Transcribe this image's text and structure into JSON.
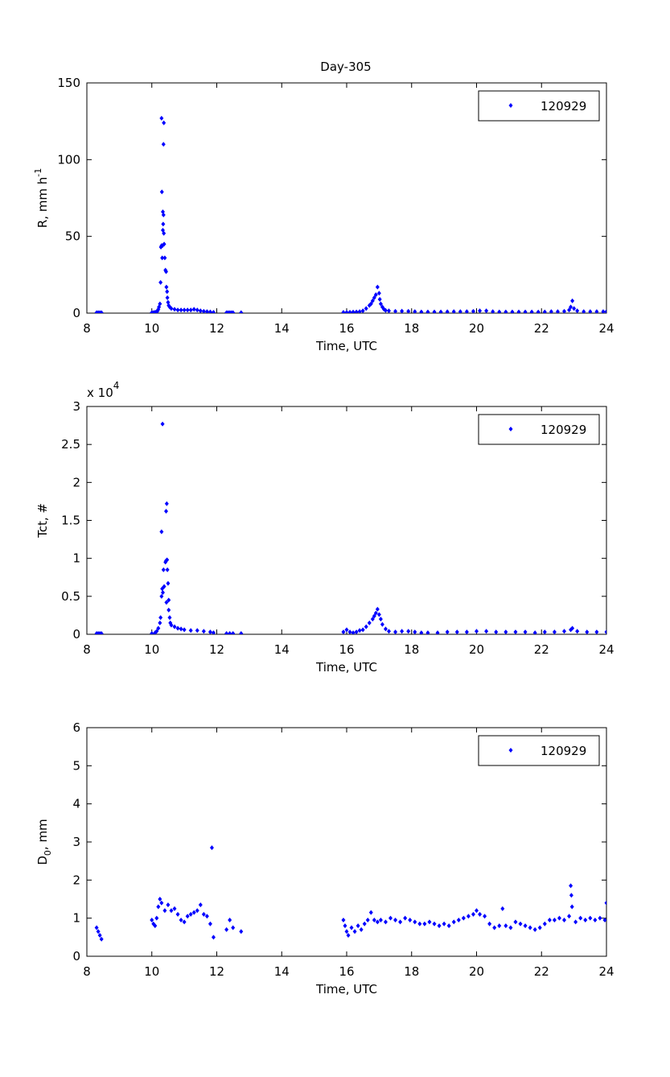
{
  "chart_data": [
    {
      "type": "scatter",
      "title": "Day-305",
      "xlabel": "Time, UTC",
      "ylabel": "R, mm h",
      "ylabel_sup": "-1",
      "xlim": [
        8,
        24
      ],
      "ylim": [
        0,
        150
      ],
      "xticks": [
        "8",
        "10",
        "12",
        "14",
        "16",
        "18",
        "20",
        "22",
        "24"
      ],
      "yticks": [
        "0",
        "50",
        "100",
        "150"
      ],
      "legend": {
        "label": "120929",
        "position": "top-right"
      },
      "color": "#0000ff",
      "points": [
        [
          8.3,
          0.3
        ],
        [
          8.35,
          0.3
        ],
        [
          8.4,
          0.3
        ],
        [
          8.45,
          0.3
        ],
        [
          10.0,
          0.3
        ],
        [
          10.05,
          0.4
        ],
        [
          10.1,
          0.6
        ],
        [
          10.15,
          1
        ],
        [
          10.18,
          1.5
        ],
        [
          10.2,
          2.5
        ],
        [
          10.22,
          4
        ],
        [
          10.25,
          6
        ],
        [
          10.27,
          20
        ],
        [
          10.28,
          43
        ],
        [
          10.3,
          44
        ],
        [
          10.31,
          79
        ],
        [
          10.3,
          127
        ],
        [
          10.37,
          124
        ],
        [
          10.36,
          110
        ],
        [
          10.34,
          66
        ],
        [
          10.36,
          64
        ],
        [
          10.35,
          58
        ],
        [
          10.34,
          54
        ],
        [
          10.37,
          52
        ],
        [
          10.38,
          45
        ],
        [
          10.33,
          44
        ],
        [
          10.32,
          36
        ],
        [
          10.4,
          36
        ],
        [
          10.42,
          28
        ],
        [
          10.44,
          27
        ],
        [
          10.45,
          17
        ],
        [
          10.47,
          14
        ],
        [
          10.48,
          10
        ],
        [
          10.5,
          7
        ],
        [
          10.52,
          5
        ],
        [
          10.55,
          4
        ],
        [
          10.6,
          3
        ],
        [
          10.7,
          2.5
        ],
        [
          10.8,
          2
        ],
        [
          10.9,
          2
        ],
        [
          11.0,
          2
        ],
        [
          11.1,
          2
        ],
        [
          11.2,
          2
        ],
        [
          11.3,
          2.5
        ],
        [
          11.4,
          2
        ],
        [
          11.5,
          1.5
        ],
        [
          11.6,
          1.2
        ],
        [
          11.7,
          1
        ],
        [
          11.8,
          0.8
        ],
        [
          11.9,
          0.5
        ],
        [
          12.3,
          0.3
        ],
        [
          12.35,
          0.3
        ],
        [
          12.4,
          0.3
        ],
        [
          12.45,
          0.3
        ],
        [
          12.5,
          0.3
        ],
        [
          12.75,
          0.3
        ],
        [
          15.9,
          0.5
        ],
        [
          16.0,
          0.5
        ],
        [
          16.1,
          0.6
        ],
        [
          16.2,
          0.7
        ],
        [
          16.3,
          0.8
        ],
        [
          16.4,
          1
        ],
        [
          16.5,
          1.5
        ],
        [
          16.6,
          3
        ],
        [
          16.7,
          5
        ],
        [
          16.75,
          6
        ],
        [
          16.8,
          8
        ],
        [
          16.85,
          10
        ],
        [
          16.9,
          12
        ],
        [
          16.95,
          17
        ],
        [
          17.0,
          13
        ],
        [
          17.02,
          9
        ],
        [
          17.05,
          6
        ],
        [
          17.1,
          4
        ],
        [
          17.15,
          2.5
        ],
        [
          17.2,
          1.8
        ],
        [
          17.3,
          1.5
        ],
        [
          17.5,
          1.2
        ],
        [
          17.7,
          1.3
        ],
        [
          17.9,
          1.2
        ],
        [
          18.1,
          1
        ],
        [
          18.3,
          0.8
        ],
        [
          18.5,
          0.8
        ],
        [
          18.7,
          0.8
        ],
        [
          18.9,
          0.8
        ],
        [
          19.1,
          0.9
        ],
        [
          19.3,
          1
        ],
        [
          19.5,
          1
        ],
        [
          19.7,
          1
        ],
        [
          19.9,
          1.2
        ],
        [
          20.1,
          1.5
        ],
        [
          20.3,
          1.5
        ],
        [
          20.5,
          1
        ],
        [
          20.7,
          0.8
        ],
        [
          20.9,
          0.8
        ],
        [
          21.1,
          0.8
        ],
        [
          21.3,
          0.8
        ],
        [
          21.5,
          0.8
        ],
        [
          21.7,
          0.8
        ],
        [
          21.9,
          0.7
        ],
        [
          22.1,
          0.8
        ],
        [
          22.3,
          1
        ],
        [
          22.5,
          1
        ],
        [
          22.7,
          1.2
        ],
        [
          22.85,
          2
        ],
        [
          22.9,
          4
        ],
        [
          22.95,
          8
        ],
        [
          23.0,
          3
        ],
        [
          23.1,
          1.5
        ],
        [
          23.3,
          1
        ],
        [
          23.5,
          1
        ],
        [
          23.7,
          1
        ],
        [
          23.9,
          1
        ],
        [
          24.0,
          1
        ]
      ]
    },
    {
      "type": "scatter",
      "xlabel": "Time, UTC",
      "ylabel": "Tct, #",
      "y_multiplier": "x 10",
      "y_multiplier_exp": "4",
      "xlim": [
        8,
        24
      ],
      "ylim": [
        0,
        3
      ],
      "xticks": [
        "8",
        "10",
        "12",
        "14",
        "16",
        "18",
        "20",
        "22",
        "24"
      ],
      "yticks": [
        "0",
        "0.5",
        "1",
        "1.5",
        "2",
        "2.5",
        "3"
      ],
      "legend": {
        "label": "120929",
        "position": "top-right"
      },
      "color": "#0000ff",
      "points": [
        [
          8.3,
          0.01
        ],
        [
          8.35,
          0.01
        ],
        [
          8.4,
          0.01
        ],
        [
          8.45,
          0.01
        ],
        [
          10.0,
          0.01
        ],
        [
          10.1,
          0.02
        ],
        [
          10.15,
          0.04
        ],
        [
          10.2,
          0.08
        ],
        [
          10.25,
          0.15
        ],
        [
          10.27,
          0.22
        ],
        [
          10.3,
          0.5
        ],
        [
          10.3,
          1.35
        ],
        [
          10.33,
          2.77
        ],
        [
          10.32,
          0.6
        ],
        [
          10.34,
          0.55
        ],
        [
          10.36,
          0.85
        ],
        [
          10.38,
          0.63
        ],
        [
          10.42,
          0.95
        ],
        [
          10.44,
          1.62
        ],
        [
          10.46,
          1.72
        ],
        [
          10.44,
          0.97
        ],
        [
          10.47,
          0.98
        ],
        [
          10.48,
          0.85
        ],
        [
          10.45,
          0.42
        ],
        [
          10.5,
          0.67
        ],
        [
          10.52,
          0.45
        ],
        [
          10.52,
          0.32
        ],
        [
          10.55,
          0.22
        ],
        [
          10.57,
          0.15
        ],
        [
          10.6,
          0.12
        ],
        [
          10.7,
          0.1
        ],
        [
          10.8,
          0.08
        ],
        [
          10.9,
          0.07
        ],
        [
          11.0,
          0.06
        ],
        [
          11.2,
          0.05
        ],
        [
          11.4,
          0.05
        ],
        [
          11.6,
          0.04
        ],
        [
          11.8,
          0.03
        ],
        [
          11.9,
          0.02
        ],
        [
          12.3,
          0.01
        ],
        [
          12.4,
          0.01
        ],
        [
          12.5,
          0.01
        ],
        [
          12.75,
          0.01
        ],
        [
          15.9,
          0.03
        ],
        [
          16.0,
          0.06
        ],
        [
          16.1,
          0.03
        ],
        [
          16.2,
          0.02
        ],
        [
          16.3,
          0.03
        ],
        [
          16.4,
          0.05
        ],
        [
          16.5,
          0.06
        ],
        [
          16.6,
          0.1
        ],
        [
          16.7,
          0.15
        ],
        [
          16.8,
          0.2
        ],
        [
          16.85,
          0.24
        ],
        [
          16.9,
          0.28
        ],
        [
          16.95,
          0.33
        ],
        [
          17.0,
          0.26
        ],
        [
          17.05,
          0.2
        ],
        [
          17.1,
          0.13
        ],
        [
          17.2,
          0.07
        ],
        [
          17.3,
          0.04
        ],
        [
          17.5,
          0.03
        ],
        [
          17.7,
          0.04
        ],
        [
          17.9,
          0.04
        ],
        [
          18.1,
          0.03
        ],
        [
          18.3,
          0.02
        ],
        [
          18.5,
          0.02
        ],
        [
          18.8,
          0.02
        ],
        [
          19.1,
          0.03
        ],
        [
          19.4,
          0.03
        ],
        [
          19.7,
          0.03
        ],
        [
          20.0,
          0.04
        ],
        [
          20.3,
          0.04
        ],
        [
          20.6,
          0.03
        ],
        [
          20.9,
          0.03
        ],
        [
          21.2,
          0.03
        ],
        [
          21.5,
          0.03
        ],
        [
          21.8,
          0.02
        ],
        [
          22.1,
          0.03
        ],
        [
          22.4,
          0.03
        ],
        [
          22.7,
          0.04
        ],
        [
          22.9,
          0.06
        ],
        [
          22.95,
          0.08
        ],
        [
          23.1,
          0.04
        ],
        [
          23.4,
          0.03
        ],
        [
          23.7,
          0.03
        ],
        [
          24.0,
          0.03
        ]
      ]
    },
    {
      "type": "scatter",
      "xlabel": "Time, UTC",
      "ylabel": "D",
      "ylabel_sub": "0",
      "ylabel_suffix": ", mm",
      "xlim": [
        8,
        24
      ],
      "ylim": [
        0,
        6
      ],
      "xticks": [
        "8",
        "10",
        "12",
        "14",
        "16",
        "18",
        "20",
        "22",
        "24"
      ],
      "yticks": [
        "0",
        "1",
        "2",
        "3",
        "4",
        "5",
        "6"
      ],
      "legend": {
        "label": "120929",
        "position": "top-right"
      },
      "color": "#0000ff",
      "points": [
        [
          8.3,
          0.75
        ],
        [
          8.35,
          0.65
        ],
        [
          8.4,
          0.55
        ],
        [
          8.45,
          0.45
        ],
        [
          10.0,
          0.95
        ],
        [
          10.05,
          0.85
        ],
        [
          10.1,
          0.8
        ],
        [
          10.15,
          1.0
        ],
        [
          10.2,
          1.3
        ],
        [
          10.25,
          1.5
        ],
        [
          10.3,
          1.4
        ],
        [
          10.4,
          1.2
        ],
        [
          10.5,
          1.35
        ],
        [
          10.6,
          1.2
        ],
        [
          10.7,
          1.25
        ],
        [
          10.8,
          1.1
        ],
        [
          10.9,
          0.95
        ],
        [
          11.0,
          0.9
        ],
        [
          11.1,
          1.05
        ],
        [
          11.2,
          1.1
        ],
        [
          11.3,
          1.15
        ],
        [
          11.4,
          1.2
        ],
        [
          11.5,
          1.35
        ],
        [
          11.6,
          1.1
        ],
        [
          11.7,
          1.05
        ],
        [
          11.8,
          0.85
        ],
        [
          11.85,
          2.85
        ],
        [
          11.9,
          0.5
        ],
        [
          12.3,
          0.7
        ],
        [
          12.4,
          0.95
        ],
        [
          12.5,
          0.75
        ],
        [
          12.75,
          0.65
        ],
        [
          15.9,
          0.95
        ],
        [
          15.95,
          0.8
        ],
        [
          16.0,
          0.65
        ],
        [
          16.05,
          0.55
        ],
        [
          16.15,
          0.75
        ],
        [
          16.25,
          0.65
        ],
        [
          16.35,
          0.8
        ],
        [
          16.45,
          0.7
        ],
        [
          16.55,
          0.85
        ],
        [
          16.65,
          0.95
        ],
        [
          16.75,
          1.15
        ],
        [
          16.85,
          0.95
        ],
        [
          16.95,
          0.9
        ],
        [
          17.05,
          0.95
        ],
        [
          17.2,
          0.9
        ],
        [
          17.35,
          1.0
        ],
        [
          17.5,
          0.95
        ],
        [
          17.65,
          0.9
        ],
        [
          17.8,
          1.0
        ],
        [
          17.95,
          0.95
        ],
        [
          18.1,
          0.9
        ],
        [
          18.25,
          0.85
        ],
        [
          18.4,
          0.85
        ],
        [
          18.55,
          0.9
        ],
        [
          18.7,
          0.85
        ],
        [
          18.85,
          0.8
        ],
        [
          19.0,
          0.85
        ],
        [
          19.15,
          0.8
        ],
        [
          19.3,
          0.9
        ],
        [
          19.45,
          0.95
        ],
        [
          19.6,
          1.0
        ],
        [
          19.75,
          1.05
        ],
        [
          19.9,
          1.1
        ],
        [
          20.0,
          1.2
        ],
        [
          20.1,
          1.1
        ],
        [
          20.25,
          1.05
        ],
        [
          20.4,
          0.85
        ],
        [
          20.55,
          0.75
        ],
        [
          20.7,
          0.8
        ],
        [
          20.8,
          1.25
        ],
        [
          20.9,
          0.8
        ],
        [
          21.05,
          0.75
        ],
        [
          21.2,
          0.9
        ],
        [
          21.35,
          0.85
        ],
        [
          21.5,
          0.8
        ],
        [
          21.65,
          0.75
        ],
        [
          21.8,
          0.7
        ],
        [
          21.95,
          0.75
        ],
        [
          22.1,
          0.85
        ],
        [
          22.25,
          0.95
        ],
        [
          22.4,
          0.95
        ],
        [
          22.55,
          1.0
        ],
        [
          22.7,
          0.95
        ],
        [
          22.85,
          1.05
        ],
        [
          22.9,
          1.85
        ],
        [
          22.92,
          1.6
        ],
        [
          22.94,
          1.3
        ],
        [
          23.05,
          0.9
        ],
        [
          23.2,
          1.0
        ],
        [
          23.35,
          0.95
        ],
        [
          23.5,
          1.0
        ],
        [
          23.65,
          0.95
        ],
        [
          23.8,
          1.0
        ],
        [
          23.95,
          0.95
        ],
        [
          24.0,
          1.4
        ]
      ]
    }
  ]
}
